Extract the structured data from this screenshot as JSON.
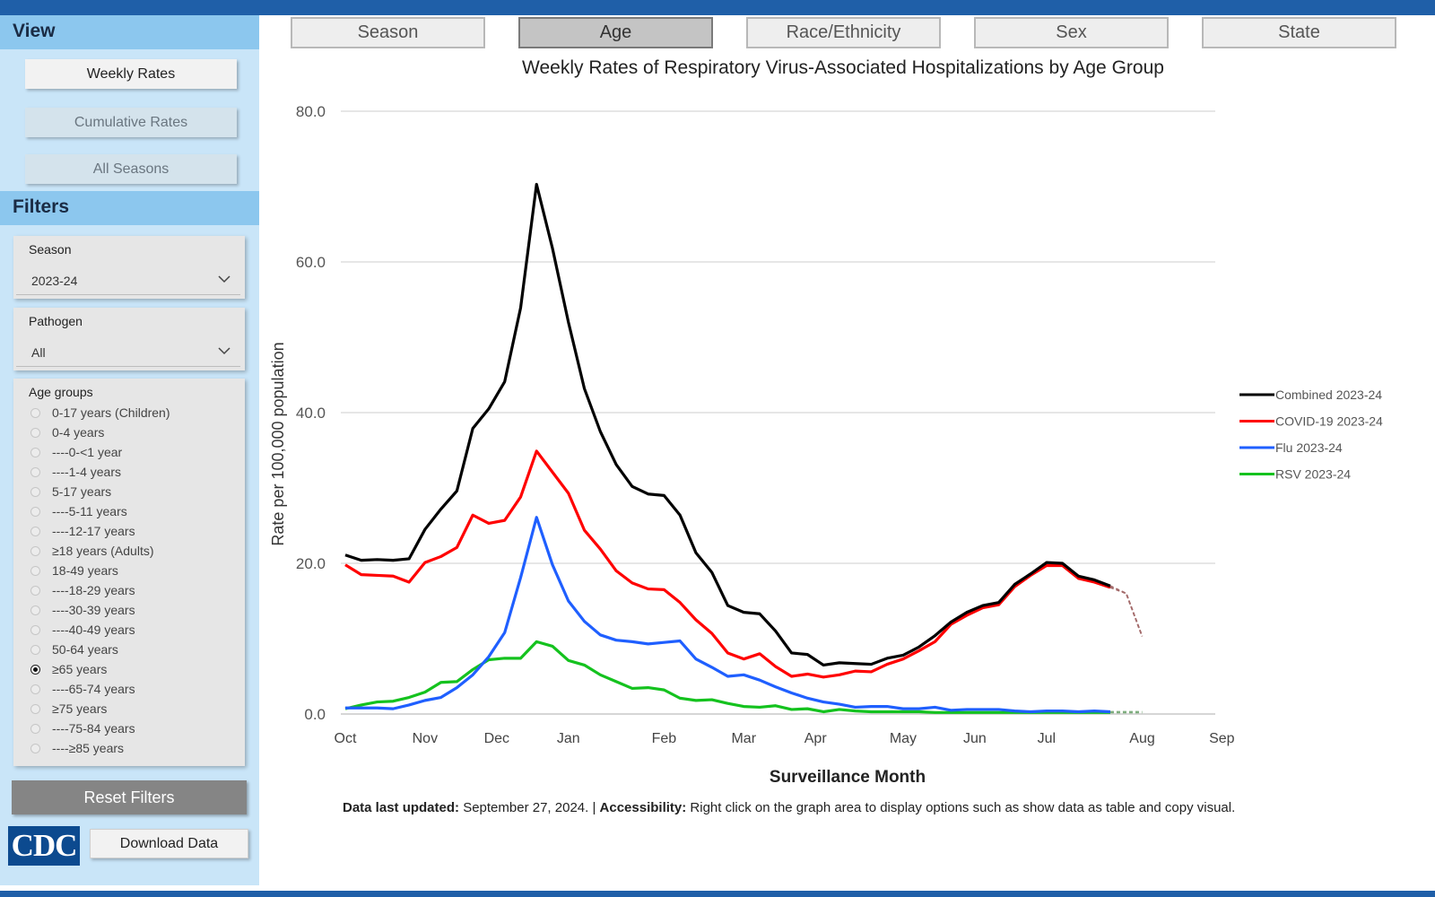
{
  "sidebar": {
    "view_heading": "View",
    "view_buttons": [
      "Weekly Rates",
      "Cumulative Rates",
      "All Seasons"
    ],
    "filters_heading": "Filters",
    "season": {
      "label": "Season",
      "value": "2023-24"
    },
    "pathogen": {
      "label": "Pathogen",
      "value": "All"
    },
    "age_groups": {
      "label": "Age groups",
      "options": [
        "0-17 years (Children)",
        "0-4 years",
        "----0-<1 year",
        "----1-4 years",
        "5-17 years",
        "----5-11 years",
        "----12-17 years",
        "≥18 years (Adults)",
        "18-49 years",
        "----18-29 years",
        "----30-39 years",
        "----40-49 years",
        "50-64 years",
        "≥65 years",
        "----65-74 years",
        "≥75 years",
        "----75-84 years",
        "----≥85 years"
      ],
      "selected": "≥65 years"
    },
    "reset_label": "Reset Filters",
    "logo_text": "CDC",
    "download_label": "Download Data"
  },
  "tabs": [
    "Season",
    "Age",
    "Race/Ethnicity",
    "Sex",
    "State"
  ],
  "active_tab": "Age",
  "footer": {
    "updated_label": "Data last updated:",
    "updated_value": " September 27, 2024. | ",
    "access_label": "Accessibility:",
    "access_value": " Right click on the graph area to display options such as show data as table and copy visual."
  },
  "chart_data": {
    "type": "line",
    "title": "Weekly Rates of Respiratory Virus-Associated Hospitalizations by Age Group",
    "xlabel": "Surveillance Month",
    "ylabel": "Rate per 100,000 population",
    "ylim": [
      0,
      80
    ],
    "yticks": [
      "0.0",
      "20.0",
      "40.0",
      "60.0",
      "80.0"
    ],
    "month_ticks": [
      {
        "label": "Oct",
        "week": 1
      },
      {
        "label": "Nov",
        "week": 6
      },
      {
        "label": "Dec",
        "week": 10.5
      },
      {
        "label": "Jan",
        "week": 15
      },
      {
        "label": "Feb",
        "week": 21
      },
      {
        "label": "Mar",
        "week": 26
      },
      {
        "label": "Apr",
        "week": 30.5
      },
      {
        "label": "May",
        "week": 36
      },
      {
        "label": "Jun",
        "week": 40.5
      },
      {
        "label": "Jul",
        "week": 45
      },
      {
        "label": "Aug",
        "week": 51
      },
      {
        "label": "Sep",
        "week": 56
      }
    ],
    "grid": true,
    "legend_position": "right",
    "weeks": [
      1,
      2,
      3,
      4,
      5,
      6,
      7,
      8,
      9,
      10,
      11,
      12,
      13,
      14,
      15,
      16,
      17,
      18,
      19,
      20,
      21,
      22,
      23,
      24,
      25,
      26,
      27,
      28,
      29,
      30,
      31,
      32,
      33,
      34,
      35,
      36,
      37,
      38,
      39,
      40,
      41,
      42,
      43,
      44,
      45,
      46,
      47,
      48,
      49,
      50,
      51,
      52,
      53,
      54,
      55
    ],
    "series": [
      {
        "name": "Combined 2023-24",
        "color": "#000000",
        "values": [
          21.1,
          20.4,
          20.5,
          20.4,
          20.6,
          24.5,
          27.2,
          29.6,
          37.9,
          40.5,
          44.1,
          53.9,
          70.3,
          61.8,
          52.0,
          43.2,
          37.5,
          33.1,
          30.2,
          29.2,
          29.0,
          26.4,
          21.4,
          18.8,
          14.4,
          13.5,
          13.3,
          11.0,
          8.1,
          7.9,
          6.5,
          6.8,
          6.7,
          6.6,
          7.4,
          7.8,
          8.9,
          10.4,
          12.2,
          13.5,
          14.4,
          14.8,
          17.2,
          18.6,
          20.1,
          20.0,
          18.3,
          17.8,
          17.0
        ],
        "projection": [
          16.0,
          10.3
        ]
      },
      {
        "name": "COVID-19 2023-24",
        "color": "#ff0000",
        "values": [
          19.8,
          18.5,
          18.4,
          18.3,
          17.5,
          20.1,
          20.9,
          22.1,
          26.4,
          25.3,
          25.7,
          28.8,
          34.9,
          32.1,
          29.3,
          24.4,
          21.9,
          19.0,
          17.4,
          16.6,
          16.5,
          14.8,
          12.5,
          10.7,
          8.1,
          7.3,
          8.0,
          6.3,
          5.0,
          5.3,
          4.9,
          5.2,
          5.7,
          5.6,
          6.6,
          7.3,
          8.4,
          9.6,
          11.9,
          13.1,
          14.1,
          14.5,
          16.9,
          18.4,
          19.7,
          19.7,
          18.0,
          17.5,
          16.8
        ],
        "projection": [
          16.0,
          10.3
        ]
      },
      {
        "name": "Flu 2023-24",
        "color": "#1f5fff",
        "values": [
          0.8,
          0.8,
          0.8,
          0.7,
          1.2,
          1.8,
          2.2,
          3.5,
          5.2,
          7.6,
          10.8,
          18.1,
          26.1,
          19.8,
          15.0,
          12.3,
          10.5,
          9.8,
          9.6,
          9.3,
          9.5,
          9.7,
          7.3,
          6.2,
          5.0,
          5.2,
          4.5,
          3.6,
          2.8,
          2.1,
          1.6,
          1.3,
          0.9,
          1.0,
          1.0,
          0.7,
          0.7,
          0.9,
          0.5,
          0.6,
          0.6,
          0.6,
          0.4,
          0.3,
          0.4,
          0.4,
          0.3,
          0.4,
          0.3
        ],
        "projection": [
          0.3,
          0.3
        ]
      },
      {
        "name": "RSV 2023-24",
        "color": "#14c21e",
        "values": [
          0.7,
          1.2,
          1.6,
          1.7,
          2.2,
          2.9,
          4.2,
          4.3,
          5.9,
          7.2,
          7.4,
          7.4,
          9.6,
          9.0,
          7.1,
          6.5,
          5.2,
          4.3,
          3.4,
          3.5,
          3.2,
          2.1,
          1.8,
          1.9,
          1.4,
          1.0,
          0.9,
          1.1,
          0.6,
          0.7,
          0.3,
          0.6,
          0.4,
          0.3,
          0.3,
          0.3,
          0.3,
          0.2,
          0.2,
          0.2,
          0.2,
          0.2,
          0.2,
          0.2,
          0.2,
          0.2,
          0.2,
          0.2,
          0.2
        ],
        "projection": [
          0.2,
          0.2
        ]
      }
    ]
  }
}
